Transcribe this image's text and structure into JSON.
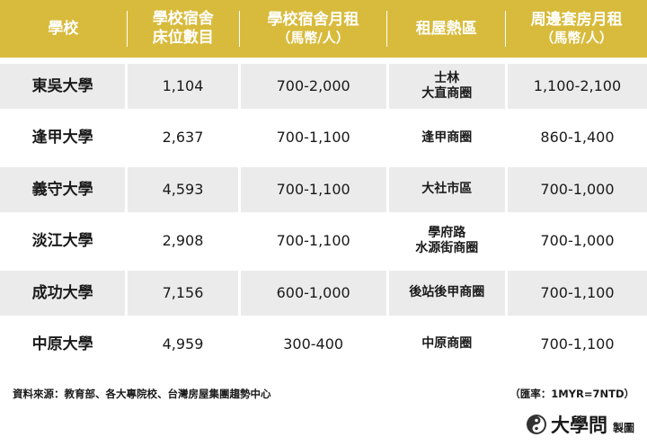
{
  "header": {
    "school": "學校",
    "beds": [
      "學校宿舍",
      "床位數目"
    ],
    "dorm_rent": [
      "學校宿舍月租",
      "（馬幣/人）"
    ],
    "hot_area": "租屋熱區",
    "nearby_rent": [
      "周邊套房月租",
      "（馬幣/人）"
    ]
  },
  "rows": [
    {
      "school": "東吳大學",
      "beds": "1,104",
      "dorm_rent": "700-2,000",
      "area": [
        "士林",
        "大直商圈"
      ],
      "nearby_rent": "1,100-2,100"
    },
    {
      "school": "逢甲大學",
      "beds": "2,637",
      "dorm_rent": "700-1,100",
      "area": [
        "逢甲商圈"
      ],
      "nearby_rent": "860-1,400"
    },
    {
      "school": "義守大學",
      "beds": "4,593",
      "dorm_rent": "700-1,100",
      "area": [
        "大社市區"
      ],
      "nearby_rent": "700-1,000"
    },
    {
      "school": "淡江大學",
      "beds": "2,908",
      "dorm_rent": "700-1,100",
      "area": [
        "學府路",
        "水源街商圈"
      ],
      "nearby_rent": "700-1,000"
    },
    {
      "school": "成功大學",
      "beds": "7,156",
      "dorm_rent": "600-1,000",
      "area": [
        "後站後甲商圈"
      ],
      "nearby_rent": "700-1,100"
    },
    {
      "school": "中原大學",
      "beds": "4,959",
      "dorm_rent": "300-400",
      "area": [
        "中原商圈"
      ],
      "nearby_rent": "700-1,100"
    }
  ],
  "footer": {
    "source": "資料來源：教育部、各大專院校、台灣房屋集團趨勢中心",
    "rate": "（匯率：1MYR=7NTD）"
  },
  "brand": {
    "name": "大學問",
    "made_by": "製圖",
    "logo_icon": "daxuewen-logo-icon"
  },
  "colors": {
    "header_bg": "#d8bb3c",
    "row_shade": "#ebebeb",
    "logo": "#333333"
  }
}
